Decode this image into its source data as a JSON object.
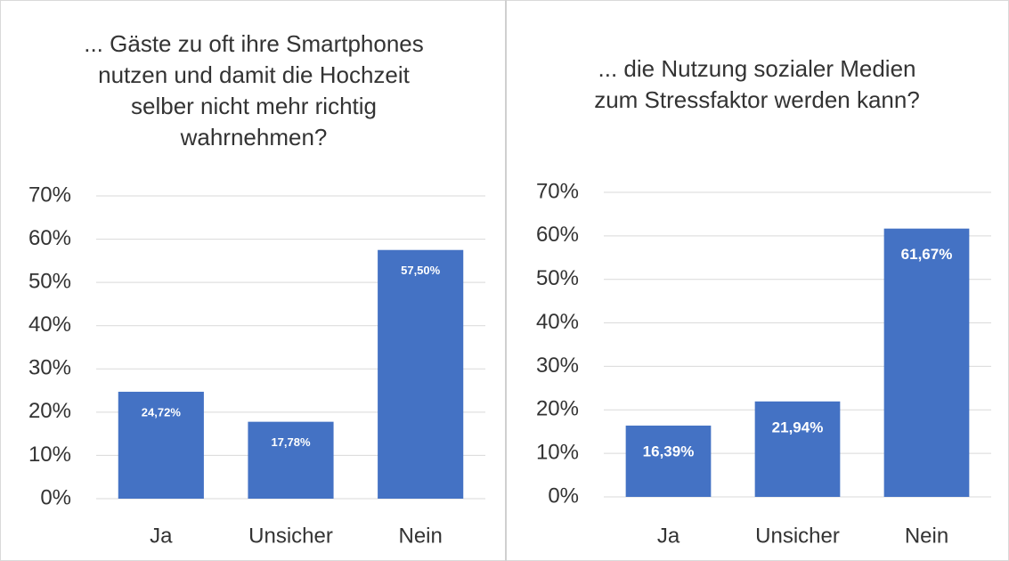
{
  "chart_data": [
    {
      "type": "bar",
      "title": "... Gäste zu oft ihre Smartphones\nnutzen und damit die Hochzeit\nselber nicht mehr richtig\nwahrnehmen?",
      "categories": [
        "Ja",
        "Unsicher",
        "Nein"
      ],
      "values": [
        24.72,
        17.78,
        57.5
      ],
      "value_labels": [
        "24,72%",
        "17,78%",
        "57,50%"
      ],
      "color": "#4472c4",
      "ylim": [
        0,
        70
      ],
      "yticks": [
        {
          "value": 0,
          "label": "0%"
        },
        {
          "value": 10,
          "label": "10%"
        },
        {
          "value": 20,
          "label": "20%"
        },
        {
          "value": 30,
          "label": "30%"
        },
        {
          "value": 40,
          "label": "40%"
        },
        {
          "value": 50,
          "label": "50%"
        },
        {
          "value": 60,
          "label": "60%"
        },
        {
          "value": 70,
          "label": "70%"
        }
      ],
      "grid": true
    },
    {
      "type": "bar",
      "title": "... die Nutzung sozialer Medien\nzum Stressfaktor werden kann?",
      "categories": [
        "Ja",
        "Unsicher",
        "Nein"
      ],
      "values": [
        16.39,
        21.94,
        61.67
      ],
      "value_labels": [
        "16,39%",
        "21,94%",
        "61,67%"
      ],
      "color": "#4472c4",
      "ylim": [
        0,
        70
      ],
      "yticks": [
        {
          "value": 0,
          "label": "0%"
        },
        {
          "value": 10,
          "label": "10%"
        },
        {
          "value": 20,
          "label": "20%"
        },
        {
          "value": 30,
          "label": "30%"
        },
        {
          "value": 40,
          "label": "40%"
        },
        {
          "value": 50,
          "label": "50%"
        },
        {
          "value": 60,
          "label": "60%"
        },
        {
          "value": 70,
          "label": "70%"
        }
      ],
      "grid": true
    }
  ]
}
